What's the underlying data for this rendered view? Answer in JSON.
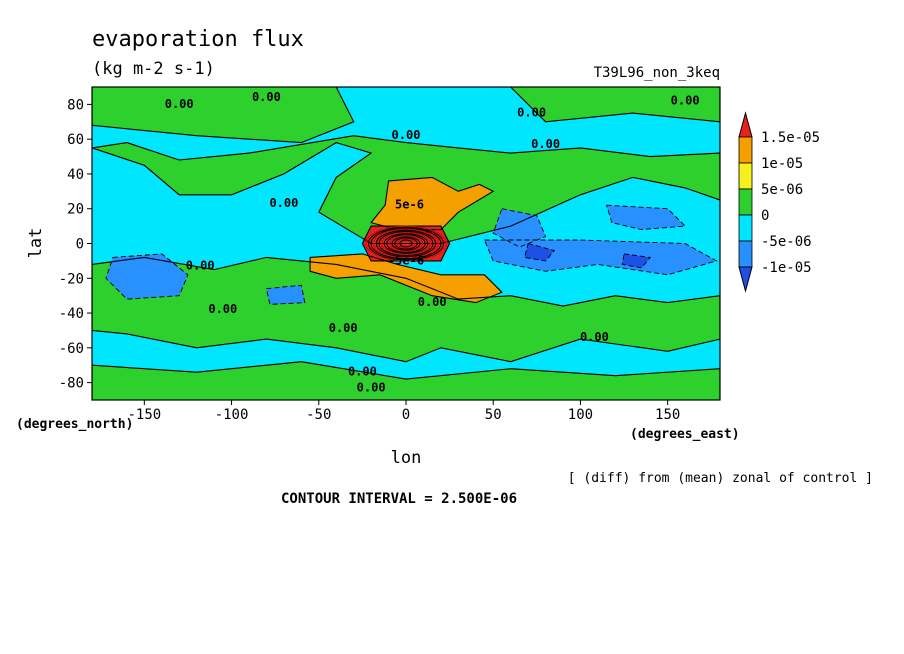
{
  "chart_data": {
    "type": "heatmap",
    "title": "evaporation flux",
    "subtitle": "(kg m-2 s-1)",
    "run_label": "T39L96_non_3keq",
    "xlabel": "lon",
    "ylabel": "lat",
    "x_unit_label": "(degrees_east)",
    "y_unit_label": "(degrees_north)",
    "xlim": [
      -180,
      180
    ],
    "ylim": [
      -90,
      90
    ],
    "x_ticks": [
      -150,
      -100,
      -50,
      0,
      50,
      100,
      150
    ],
    "x_tick_labels": [
      "-150",
      "-100",
      "-50",
      "0",
      "50",
      "100",
      "150"
    ],
    "y_ticks": [
      80,
      60,
      40,
      20,
      0,
      -20,
      -40,
      -60,
      -80
    ],
    "y_tick_labels": [
      "80",
      "60",
      "40",
      "20",
      "0",
      "-20",
      "-40",
      "-60",
      "-80"
    ],
    "colorbar": {
      "labels": [
        "1.5e-05",
        "1e-05",
        "5e-06",
        "0",
        "-5e-06",
        "-1e-05"
      ],
      "colors": [
        "#e8201e",
        "#f5a000",
        "#f5f01e",
        "#2ed02e",
        "#00e6ff",
        "#2891ff",
        "#1e50e6"
      ]
    },
    "contour_interval_label": "CONTOUR INTERVAL = 2.500E-06",
    "diff_note": "[ (diff) from (mean) zonal of control ]",
    "contour_labels": [
      "0.00",
      "0.00",
      "0.00",
      "0.00",
      "0.00",
      "0.00",
      "0.00",
      "0.00",
      "0.00",
      "0.00",
      "0.00",
      "0.00",
      "0.00",
      "5e-6",
      "-5e-6",
      "0.00"
    ],
    "background_level": "0",
    "regions": [
      {
        "level": "5e-06",
        "pts": [
          [
            -180,
            90
          ],
          [
            -40,
            90
          ],
          [
            -30,
            70
          ],
          [
            -60,
            58
          ],
          [
            -120,
            62
          ],
          [
            -180,
            68
          ]
        ]
      },
      {
        "level": "5e-06",
        "pts": [
          [
            60,
            90
          ],
          [
            180,
            90
          ],
          [
            180,
            70
          ],
          [
            130,
            75
          ],
          [
            80,
            70
          ]
        ]
      },
      {
        "level": "5e-06",
        "pts": [
          [
            -180,
            55
          ],
          [
            -150,
            45
          ],
          [
            -130,
            28
          ],
          [
            -100,
            28
          ],
          [
            -70,
            40
          ],
          [
            -40,
            58
          ],
          [
            -20,
            52
          ],
          [
            -40,
            38
          ],
          [
            -50,
            18
          ],
          [
            -20,
            0
          ],
          [
            20,
            0
          ],
          [
            60,
            10
          ],
          [
            100,
            28
          ],
          [
            130,
            38
          ],
          [
            160,
            32
          ],
          [
            180,
            25
          ],
          [
            180,
            52
          ],
          [
            140,
            50
          ],
          [
            100,
            55
          ],
          [
            60,
            52
          ],
          [
            30,
            55
          ],
          [
            0,
            58
          ],
          [
            -30,
            62
          ],
          [
            -90,
            52
          ],
          [
            -130,
            48
          ],
          [
            -160,
            58
          ]
        ]
      },
      {
        "level": "5e-06",
        "pts": [
          [
            -180,
            -12
          ],
          [
            -150,
            -8
          ],
          [
            -110,
            -15
          ],
          [
            -80,
            -8
          ],
          [
            -40,
            -12
          ],
          [
            0,
            -20
          ],
          [
            30,
            -32
          ],
          [
            60,
            -30
          ],
          [
            90,
            -36
          ],
          [
            120,
            -30
          ],
          [
            150,
            -34
          ],
          [
            180,
            -30
          ],
          [
            180,
            -55
          ],
          [
            150,
            -62
          ],
          [
            100,
            -55
          ],
          [
            60,
            -68
          ],
          [
            20,
            -60
          ],
          [
            0,
            -68
          ],
          [
            -40,
            -60
          ],
          [
            -80,
            -55
          ],
          [
            -120,
            -60
          ],
          [
            -160,
            -52
          ],
          [
            -180,
            -50
          ]
        ]
      },
      {
        "level": "5e-06",
        "pts": [
          [
            -180,
            -70
          ],
          [
            -120,
            -74
          ],
          [
            -60,
            -68
          ],
          [
            0,
            -78
          ],
          [
            60,
            -72
          ],
          [
            120,
            -76
          ],
          [
            180,
            -72
          ],
          [
            180,
            -90
          ],
          [
            -180,
            -90
          ]
        ]
      },
      {
        "level": "1e-05",
        "pts": [
          [
            -10,
            36
          ],
          [
            15,
            38
          ],
          [
            30,
            30
          ],
          [
            42,
            34
          ],
          [
            50,
            30
          ],
          [
            30,
            18
          ],
          [
            20,
            8
          ],
          [
            -5,
            8
          ],
          [
            -20,
            12
          ],
          [
            -12,
            22
          ]
        ]
      },
      {
        "level": "1e-05",
        "pts": [
          [
            -55,
            -8
          ],
          [
            -25,
            -6
          ],
          [
            -5,
            -12
          ],
          [
            20,
            -18
          ],
          [
            45,
            -18
          ],
          [
            55,
            -28
          ],
          [
            40,
            -34
          ],
          [
            15,
            -30
          ],
          [
            -15,
            -18
          ],
          [
            -40,
            -20
          ],
          [
            -55,
            -16
          ]
        ]
      },
      {
        "level": "-5e-06",
        "pts": [
          [
            -168,
            -8
          ],
          [
            -140,
            -6
          ],
          [
            -125,
            -18
          ],
          [
            -130,
            -30
          ],
          [
            -160,
            -32
          ],
          [
            -172,
            -20
          ]
        ]
      },
      {
        "level": "-5e-06",
        "pts": [
          [
            -80,
            -26
          ],
          [
            -60,
            -24
          ],
          [
            -58,
            -34
          ],
          [
            -78,
            -35
          ]
        ]
      },
      {
        "level": "-5e-06",
        "pts": [
          [
            55,
            20
          ],
          [
            75,
            16
          ],
          [
            80,
            4
          ],
          [
            65,
            -2
          ],
          [
            50,
            6
          ]
        ]
      },
      {
        "level": "-5e-06",
        "pts": [
          [
            45,
            2
          ],
          [
            100,
            2
          ],
          [
            160,
            0
          ],
          [
            178,
            -10
          ],
          [
            150,
            -18
          ],
          [
            110,
            -12
          ],
          [
            80,
            -16
          ],
          [
            50,
            -10
          ]
        ]
      },
      {
        "level": "-5e-06",
        "pts": [
          [
            115,
            22
          ],
          [
            150,
            20
          ],
          [
            160,
            10
          ],
          [
            135,
            8
          ],
          [
            118,
            12
          ]
        ]
      },
      {
        "level": "-1e-05",
        "pts": [
          [
            70,
            0
          ],
          [
            85,
            -4
          ],
          [
            80,
            -10
          ],
          [
            68,
            -8
          ]
        ]
      },
      {
        "level": "-1e-05",
        "pts": [
          [
            125,
            -6
          ],
          [
            140,
            -8
          ],
          [
            135,
            -14
          ],
          [
            124,
            -12
          ]
        ]
      },
      {
        "level": "1.5e-05",
        "pts": [
          [
            -20,
            10
          ],
          [
            20,
            10
          ],
          [
            25,
            0
          ],
          [
            20,
            -10
          ],
          [
            -20,
            -10
          ],
          [
            -25,
            0
          ]
        ]
      }
    ]
  }
}
